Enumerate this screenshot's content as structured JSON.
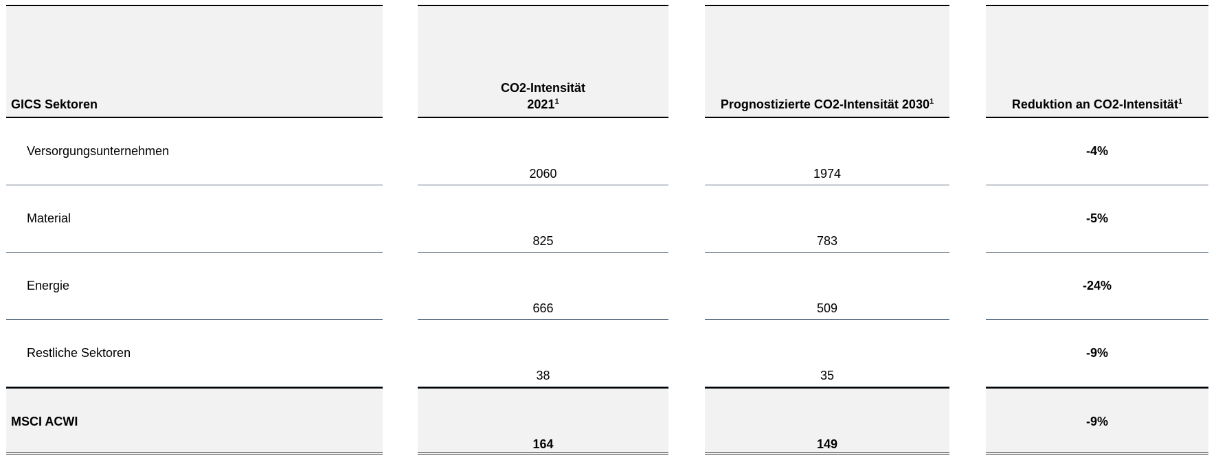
{
  "table": {
    "headers": [
      {
        "lines": [
          "GICS Sektoren"
        ]
      },
      {
        "lines": [
          "CO2-Intensität",
          "2021"
        ],
        "note": "1"
      },
      {
        "lines": [
          "Prognostizierte CO2-Intensität 2030"
        ],
        "note": "1"
      },
      {
        "lines": [
          "Reduktion an CO2-Intensität"
        ],
        "note": "1"
      }
    ],
    "rows": [
      [
        "Versorgungsunternehmen",
        2060,
        1974,
        "-4%"
      ],
      [
        "Material",
        825,
        783,
        "-5%"
      ],
      [
        "Energie",
        666,
        509,
        "-24%"
      ],
      [
        "Restliche Sektoren",
        38,
        35,
        "-9%"
      ]
    ],
    "total": [
      "MSCI ACWI",
      164,
      149,
      "-9%"
    ]
  }
}
